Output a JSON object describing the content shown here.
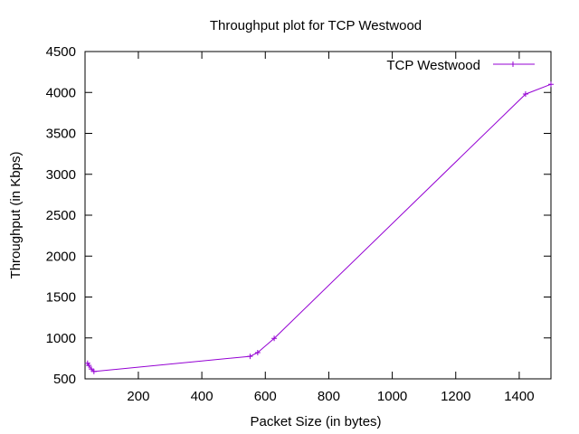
{
  "chart_data": {
    "type": "line",
    "title": "Throughput plot for TCP Westwood",
    "xlabel": "Packet Size (in bytes)",
    "ylabel": "Throughput (in Kbps)",
    "xlim": [
      32,
      1500
    ],
    "ylim": [
      500,
      4500
    ],
    "xticks": [
      200,
      400,
      600,
      800,
      1000,
      1200,
      1400
    ],
    "yticks": [
      500,
      1000,
      1500,
      2000,
      2500,
      3000,
      3500,
      4000,
      4500
    ],
    "grid": false,
    "legend_position": "top-right",
    "series": [
      {
        "name": "TCP Westwood",
        "color": "#9400d3",
        "marker": "plus",
        "x": [
          40,
          44,
          52,
          60,
          552,
          576,
          628,
          1420,
          1500
        ],
        "y": [
          690,
          665,
          620,
          590,
          775,
          820,
          995,
          3980,
          4100
        ]
      }
    ]
  }
}
